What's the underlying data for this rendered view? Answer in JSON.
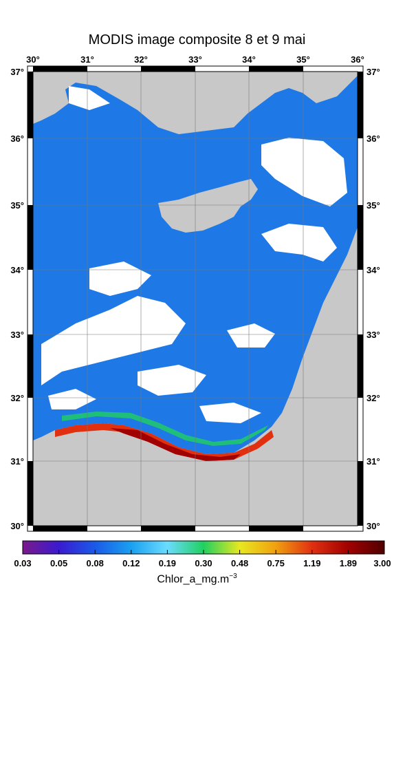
{
  "title": "MODIS image composite 8 et 9 mai",
  "lon_labels": [
    "30",
    "31",
    "32",
    "33",
    "34",
    "35",
    "36"
  ],
  "lat_labels": [
    "37",
    "36",
    "35",
    "34",
    "33",
    "32",
    "31",
    "30"
  ],
  "degree_mark": "°",
  "colorbar": {
    "ticks": [
      "0.03",
      "0.05",
      "0.08",
      "0.12",
      "0.19",
      "0.30",
      "0.48",
      "0.75",
      "1.19",
      "1.89",
      "3.00"
    ],
    "label_main": "Chlor_a_mg.m",
    "label_exp": "−3",
    "colors": [
      "#7a1a8a",
      "#3a1ad0",
      "#1a5ae8",
      "#1aa0f0",
      "#6adcff",
      "#20d060",
      "#e8e820",
      "#f0a010",
      "#e03010",
      "#a00000",
      "#500000"
    ]
  },
  "map_colors": {
    "land": "#c8c8c8",
    "cloud": "#ffffff",
    "sea": "#1e78e6"
  }
}
